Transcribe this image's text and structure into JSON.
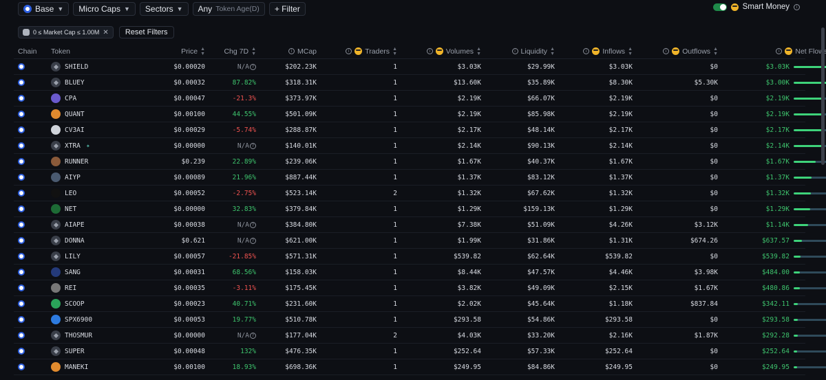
{
  "topbar": {
    "chain": "Base",
    "caps": "Micro Caps",
    "sectors": "Sectors",
    "age_value": "Any",
    "age_label": "Token Age(D)",
    "filter_button": "+ Filter",
    "smart_money": "Smart Money"
  },
  "filters": {
    "active_filter": "0 ≤ Market Cap ≤ 1.00M",
    "reset": "Reset Filters"
  },
  "columns": {
    "chain": "Chain",
    "token": "Token",
    "price": "Price",
    "chg": "Chg 7D",
    "mcap": "MCap",
    "traders": "Traders",
    "volumes": "Volumes",
    "liquidity": "Liquidity",
    "inflows": "Inflows",
    "outflows": "Outflows",
    "netflows": "Net Flows"
  },
  "colors": {
    "positive": "#3ec46d",
    "negative": "#ef5350",
    "accent": "#3ed37a"
  },
  "rows": [
    {
      "token": "SHIELD",
      "icon": "default",
      "price": "$0.00020",
      "chg": "N/A",
      "chg_type": "na",
      "mcap": "$202.23K",
      "traders": "1",
      "volumes": "$3.03K",
      "liquidity": "$29.99K",
      "inflows": "$3.03K",
      "outflows": "$0",
      "netflows": "$3.03K",
      "flow_fraction": 1.0
    },
    {
      "token": "BLUEY",
      "icon": "default",
      "price": "$0.00032",
      "chg": "87.82%",
      "chg_type": "pos",
      "mcap": "$318.31K",
      "traders": "1",
      "volumes": "$13.60K",
      "liquidity": "$35.89K",
      "inflows": "$8.30K",
      "outflows": "$5.30K",
      "netflows": "$3.00K",
      "flow_fraction": 0.99
    },
    {
      "token": "CPA",
      "icon": "purple",
      "price": "$0.00047",
      "chg": "-21.3%",
      "chg_type": "neg",
      "mcap": "$373.97K",
      "traders": "1",
      "volumes": "$2.19K",
      "liquidity": "$66.07K",
      "inflows": "$2.19K",
      "outflows": "$0",
      "netflows": "$2.19K",
      "flow_fraction": 0.72
    },
    {
      "token": "QUANT",
      "icon": "orange",
      "price": "$0.00100",
      "chg": "44.55%",
      "chg_type": "pos",
      "mcap": "$501.09K",
      "traders": "1",
      "volumes": "$2.19K",
      "liquidity": "$85.98K",
      "inflows": "$2.19K",
      "outflows": "$0",
      "netflows": "$2.19K",
      "flow_fraction": 0.72
    },
    {
      "token": "CV3AI",
      "icon": "white",
      "price": "$0.00029",
      "chg": "-5.74%",
      "chg_type": "neg",
      "mcap": "$288.87K",
      "traders": "1",
      "volumes": "$2.17K",
      "liquidity": "$48.14K",
      "inflows": "$2.17K",
      "outflows": "$0",
      "netflows": "$2.17K",
      "flow_fraction": 0.71
    },
    {
      "token": "XTRA",
      "icon": "default",
      "price": "$0.00000",
      "chg": "N/A",
      "chg_type": "na",
      "mcap": "$140.01K",
      "traders": "1",
      "volumes": "$2.14K",
      "liquidity": "$90.13K",
      "inflows": "$2.14K",
      "outflows": "$0",
      "netflows": "$2.14K",
      "flow_fraction": 0.7
    },
    {
      "token": "RUNNER",
      "icon": "brown",
      "price": "$0.239",
      "chg": "22.89%",
      "chg_type": "pos",
      "mcap": "$239.06K",
      "traders": "1",
      "volumes": "$1.67K",
      "liquidity": "$40.37K",
      "inflows": "$1.67K",
      "outflows": "$0",
      "netflows": "$1.67K",
      "flow_fraction": 0.55
    },
    {
      "token": "AIYP",
      "icon": "slate",
      "price": "$0.00089",
      "chg": "21.96%",
      "chg_type": "pos",
      "mcap": "$887.44K",
      "traders": "1",
      "volumes": "$1.37K",
      "liquidity": "$83.12K",
      "inflows": "$1.37K",
      "outflows": "$0",
      "netflows": "$1.37K",
      "flow_fraction": 0.45
    },
    {
      "token": "LEO",
      "icon": "black",
      "price": "$0.00052",
      "chg": "-2.75%",
      "chg_type": "neg",
      "mcap": "$523.14K",
      "traders": "2",
      "volumes": "$1.32K",
      "liquidity": "$67.62K",
      "inflows": "$1.32K",
      "outflows": "$0",
      "netflows": "$1.32K",
      "flow_fraction": 0.43
    },
    {
      "token": "NET",
      "icon": "green",
      "price": "$0.00000",
      "chg": "32.83%",
      "chg_type": "pos",
      "mcap": "$379.84K",
      "traders": "1",
      "volumes": "$1.29K",
      "liquidity": "$159.13K",
      "inflows": "$1.29K",
      "outflows": "$0",
      "netflows": "$1.29K",
      "flow_fraction": 0.42
    },
    {
      "token": "AIAPE",
      "icon": "default",
      "price": "$0.00038",
      "chg": "N/A",
      "chg_type": "na",
      "mcap": "$384.80K",
      "traders": "1",
      "volumes": "$7.38K",
      "liquidity": "$51.09K",
      "inflows": "$4.26K",
      "outflows": "$3.12K",
      "netflows": "$1.14K",
      "flow_fraction": 0.37
    },
    {
      "token": "DONNA",
      "icon": "default",
      "price": "$0.621",
      "chg": "N/A",
      "chg_type": "na",
      "mcap": "$621.00K",
      "traders": "1",
      "volumes": "$1.99K",
      "liquidity": "$31.86K",
      "inflows": "$1.31K",
      "outflows": "$674.26",
      "netflows": "$637.57",
      "flow_fraction": 0.21
    },
    {
      "token": "LILY",
      "icon": "default",
      "price": "$0.00057",
      "chg": "-21.85%",
      "chg_type": "neg",
      "mcap": "$571.31K",
      "traders": "1",
      "volumes": "$539.82",
      "liquidity": "$62.64K",
      "inflows": "$539.82",
      "outflows": "$0",
      "netflows": "$539.82",
      "flow_fraction": 0.18
    },
    {
      "token": "SANG",
      "icon": "navy",
      "price": "$0.00031",
      "chg": "68.56%",
      "chg_type": "pos",
      "mcap": "$158.03K",
      "traders": "1",
      "volumes": "$8.44K",
      "liquidity": "$47.57K",
      "inflows": "$4.46K",
      "outflows": "$3.98K",
      "netflows": "$484.00",
      "flow_fraction": 0.16
    },
    {
      "token": "REI",
      "icon": "grey",
      "price": "$0.00035",
      "chg": "-3.11%",
      "chg_type": "neg",
      "mcap": "$175.45K",
      "traders": "1",
      "volumes": "$3.82K",
      "liquidity": "$49.09K",
      "inflows": "$2.15K",
      "outflows": "$1.67K",
      "netflows": "$480.86",
      "flow_fraction": 0.16
    },
    {
      "token": "SCOOP",
      "icon": "leaf",
      "price": "$0.00023",
      "chg": "40.71%",
      "chg_type": "pos",
      "mcap": "$231.60K",
      "traders": "1",
      "volumes": "$2.02K",
      "liquidity": "$45.64K",
      "inflows": "$1.18K",
      "outflows": "$837.84",
      "netflows": "$342.11",
      "flow_fraction": 0.11
    },
    {
      "token": "SPX6900",
      "icon": "blue",
      "price": "$0.00053",
      "chg": "19.77%",
      "chg_type": "pos",
      "mcap": "$510.78K",
      "traders": "1",
      "volumes": "$293.58",
      "liquidity": "$54.86K",
      "inflows": "$293.58",
      "outflows": "$0",
      "netflows": "$293.58",
      "flow_fraction": 0.1
    },
    {
      "token": "THOSMUR",
      "icon": "default",
      "price": "$0.00000",
      "chg": "N/A",
      "chg_type": "na",
      "mcap": "$177.04K",
      "traders": "2",
      "volumes": "$4.03K",
      "liquidity": "$33.20K",
      "inflows": "$2.16K",
      "outflows": "$1.87K",
      "netflows": "$292.28",
      "flow_fraction": 0.1
    },
    {
      "token": "SUPER",
      "icon": "default",
      "price": "$0.00048",
      "chg": "132%",
      "chg_type": "pos",
      "mcap": "$476.35K",
      "traders": "1",
      "volumes": "$252.64",
      "liquidity": "$57.33K",
      "inflows": "$252.64",
      "outflows": "$0",
      "netflows": "$252.64",
      "flow_fraction": 0.08
    },
    {
      "token": "MANEKI",
      "icon": "orange",
      "price": "$0.00100",
      "chg": "18.93%",
      "chg_type": "pos",
      "mcap": "$698.36K",
      "traders": "1",
      "volumes": "$249.95",
      "liquidity": "$84.86K",
      "inflows": "$249.95",
      "outflows": "$0",
      "netflows": "$249.95",
      "flow_fraction": 0.08
    }
  ]
}
